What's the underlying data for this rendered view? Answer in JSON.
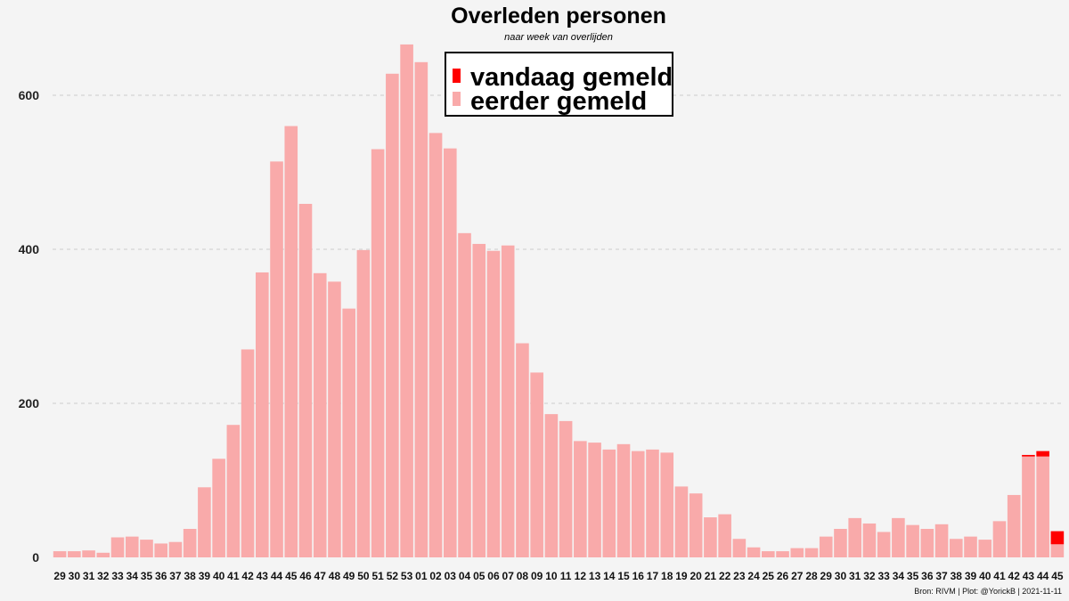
{
  "chart_data": {
    "type": "bar",
    "title": "Overleden personen",
    "subtitle": "naar week van overlijden",
    "xlabel": "",
    "ylabel": "",
    "ylim": [
      0,
      700
    ],
    "yticks": [
      0,
      200,
      400,
      600
    ],
    "grid": "horizontal dashed",
    "legend_position": "top-center",
    "stacked": true,
    "categories": [
      "29",
      "30",
      "31",
      "32",
      "33",
      "34",
      "35",
      "36",
      "37",
      "38",
      "39",
      "40",
      "41",
      "42",
      "43",
      "44",
      "45",
      "46",
      "47",
      "48",
      "49",
      "50",
      "51",
      "52",
      "53",
      "01",
      "02",
      "03",
      "04",
      "05",
      "06",
      "07",
      "08",
      "09",
      "10",
      "11",
      "12",
      "13",
      "14",
      "15",
      "16",
      "17",
      "18",
      "19",
      "20",
      "21",
      "22",
      "23",
      "24",
      "25",
      "26",
      "27",
      "28",
      "29",
      "30",
      "31",
      "32",
      "33",
      "34",
      "35",
      "36",
      "37",
      "38",
      "39",
      "40",
      "41",
      "42",
      "43",
      "44",
      "45"
    ],
    "series": [
      {
        "name": "eerder gemeld",
        "color": "#f9aaaa",
        "values": [
          8,
          8,
          9,
          6,
          26,
          27,
          23,
          18,
          20,
          37,
          91,
          128,
          172,
          270,
          370,
          514,
          560,
          459,
          369,
          358,
          323,
          399,
          530,
          628,
          666,
          643,
          551,
          531,
          421,
          407,
          398,
          405,
          278,
          240,
          186,
          177,
          151,
          149,
          140,
          147,
          138,
          140,
          136,
          92,
          83,
          52,
          56,
          24,
          13,
          8,
          8,
          12,
          12,
          27,
          37,
          51,
          44,
          33,
          51,
          42,
          37,
          43,
          24,
          27,
          23,
          47,
          81,
          131,
          131,
          17
        ]
      },
      {
        "name": "vandaag gemeld",
        "color": "#ff0000",
        "values": [
          0,
          0,
          0,
          0,
          0,
          0,
          0,
          0,
          0,
          0,
          0,
          0,
          0,
          0,
          0,
          0,
          0,
          0,
          0,
          0,
          0,
          0,
          0,
          0,
          0,
          0,
          0,
          0,
          0,
          0,
          0,
          0,
          0,
          0,
          0,
          0,
          0,
          0,
          0,
          0,
          0,
          0,
          0,
          0,
          0,
          0,
          0,
          0,
          0,
          0,
          0,
          0,
          0,
          0,
          0,
          0,
          0,
          0,
          0,
          0,
          0,
          0,
          0,
          0,
          0,
          0,
          0,
          2,
          7,
          17
        ]
      }
    ]
  },
  "caption": "Bron: RIVM | Plot: @YorickB |  2021-11-11"
}
